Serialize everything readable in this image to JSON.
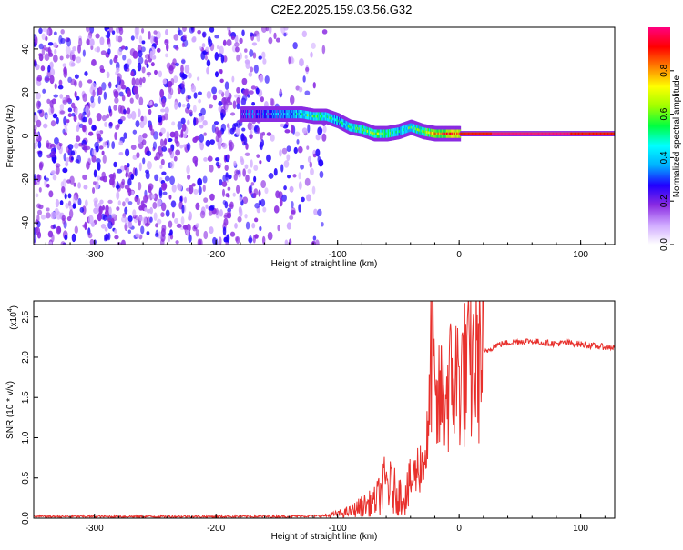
{
  "title": "C2E2.2025.159.03.56.G32",
  "chart_data": [
    {
      "type": "heatmap",
      "xlabel": "Height of straight line (km)",
      "ylabel": "Frequency (Hz)",
      "xlim": [
        -350,
        128
      ],
      "ylim": [
        -50,
        50
      ],
      "x_ticks": [
        -300,
        -200,
        -100,
        0,
        100
      ],
      "y_ticks": [
        -40,
        -20,
        0,
        20,
        40
      ],
      "colorbar": {
        "label": "Normalized spectral amplitude",
        "range": [
          0,
          1
        ],
        "ticks": [
          "0.0",
          "0.2",
          "0.4",
          "0.6",
          "0.8"
        ],
        "colors": [
          "#ffffff",
          "#cfa8ff",
          "#8a2be2",
          "#2000ff",
          "#00b0ff",
          "#00ffff",
          "#00ff40",
          "#a0ff00",
          "#ffff00",
          "#ff8000",
          "#ff0000",
          "#ff0080"
        ]
      },
      "noise_region": {
        "x_start": -350,
        "x_end": -110,
        "amplitude_range": [
          0.0,
          0.2
        ]
      },
      "signal_trace": {
        "x": [
          -180,
          -160,
          -140,
          -130,
          -120,
          -110,
          -100,
          -90,
          -80,
          -70,
          -60,
          -50,
          -40,
          -30,
          -20,
          -10,
          0,
          20,
          50,
          80,
          100,
          128
        ],
        "frequency": [
          10,
          10,
          10,
          10,
          9,
          9,
          7,
          4,
          3,
          1,
          1,
          2,
          4,
          2,
          1,
          1,
          1,
          1,
          1,
          1,
          1,
          1
        ],
        "amplitude": [
          0.25,
          0.3,
          0.35,
          0.45,
          0.5,
          0.5,
          0.45,
          0.5,
          0.55,
          0.6,
          0.55,
          0.45,
          0.5,
          0.6,
          0.75,
          0.85,
          0.9,
          0.95,
          0.97,
          0.96,
          0.95,
          0.93
        ]
      }
    },
    {
      "type": "line",
      "xlabel": "Height of straight line (km)",
      "ylabel": "SNR (10 * v/v)",
      "y_multiplier": "(x10",
      "y_multiplier_exp": "4",
      "y_multiplier_close": ")",
      "xlim": [
        -350,
        128
      ],
      "ylim": [
        0,
        2.7
      ],
      "x_ticks": [
        -300,
        -200,
        -100,
        0,
        100
      ],
      "y_ticks": [
        "0.0",
        "0.5",
        "1.0",
        "1.5",
        "2.0",
        "2.5"
      ],
      "series": [
        {
          "color": "#e8302c",
          "x": [
            -350,
            -300,
            -250,
            -200,
            -150,
            -110,
            -100,
            -90,
            -80,
            -70,
            -65,
            -60,
            -55,
            -50,
            -45,
            -40,
            -35,
            -30,
            -25,
            -22,
            -20,
            -15,
            -10,
            -5,
            0,
            5,
            10,
            15,
            20,
            25,
            30,
            40,
            50,
            60,
            70,
            80,
            90,
            100,
            110,
            120,
            128
          ],
          "y": [
            0.02,
            0.02,
            0.02,
            0.02,
            0.02,
            0.03,
            0.05,
            0.08,
            0.15,
            0.2,
            0.3,
            0.45,
            0.35,
            0.3,
            0.25,
            0.4,
            0.6,
            0.7,
            1.0,
            2.7,
            1.2,
            1.5,
            1.6,
            1.7,
            1.75,
            1.8,
            1.85,
            1.95,
            2.05,
            2.1,
            2.15,
            2.18,
            2.2,
            2.2,
            2.18,
            2.17,
            2.18,
            2.16,
            2.14,
            2.13,
            2.12
          ]
        }
      ]
    }
  ]
}
